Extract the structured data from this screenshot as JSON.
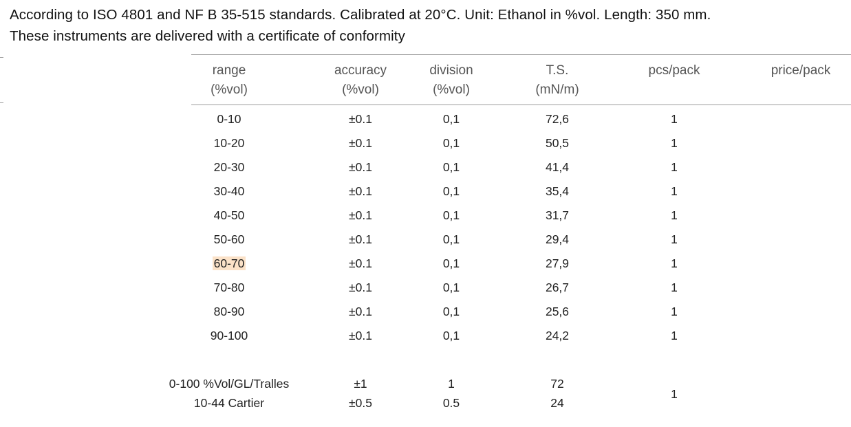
{
  "intro": {
    "line1": "According to ISO 4801 and NF B 35-515 standards. Calibrated at 20°C. Unit: Ethanol in %vol. Length: 350 mm.",
    "line2": "These instruments are delivered with a certificate of conformity"
  },
  "table": {
    "headers": [
      {
        "line1": "range",
        "line2": "(%vol)"
      },
      {
        "line1": "accuracy",
        "line2": "(%vol)"
      },
      {
        "line1": "division",
        "line2": "(%vol)"
      },
      {
        "line1": "T.S.",
        "line2": "(mN/m)"
      },
      {
        "line1": "pcs/pack",
        "line2": ""
      },
      {
        "line1": "price/pack",
        "line2": ""
      }
    ],
    "rows": [
      {
        "range": "0-10",
        "accuracy": "±0.1",
        "division": "0,1",
        "ts": "72,6",
        "pcs": "1"
      },
      {
        "range": "10-20",
        "accuracy": "±0.1",
        "division": "0,1",
        "ts": "50,5",
        "pcs": "1"
      },
      {
        "range": "20-30",
        "accuracy": "±0.1",
        "division": "0,1",
        "ts": "41,4",
        "pcs": "1"
      },
      {
        "range": "30-40",
        "accuracy": "±0.1",
        "division": "0,1",
        "ts": "35,4",
        "pcs": "1"
      },
      {
        "range": "40-50",
        "accuracy": "±0.1",
        "division": "0,1",
        "ts": "31,7",
        "pcs": "1"
      },
      {
        "range": "50-60",
        "accuracy": "±0.1",
        "division": "0,1",
        "ts": "29,4",
        "pcs": "1"
      },
      {
        "range": "60-70",
        "accuracy": "±0.1",
        "division": "0,1",
        "ts": "27,9",
        "pcs": "1",
        "highlighted": true
      },
      {
        "range": "70-80",
        "accuracy": "±0.1",
        "division": "0,1",
        "ts": "26,7",
        "pcs": "1"
      },
      {
        "range": "80-90",
        "accuracy": "±0.1",
        "division": "0,1",
        "ts": "25,6",
        "pcs": "1"
      },
      {
        "range": "90-100",
        "accuracy": "±0.1",
        "division": "0,1",
        "ts": "24,2",
        "pcs": "1"
      }
    ],
    "extra_rows": [
      {
        "range": "0-100 %Vol/GL/Tralles",
        "accuracy": "±1",
        "division": "1",
        "ts": "72"
      },
      {
        "range": "10-44 Cartier",
        "accuracy": "±0.5",
        "division": "0.5",
        "ts": "24"
      }
    ],
    "extra_pcs": "1"
  },
  "colors": {
    "highlight": "#fbe2c8",
    "rule": "#9a9a9a",
    "header_text": "#555555"
  }
}
